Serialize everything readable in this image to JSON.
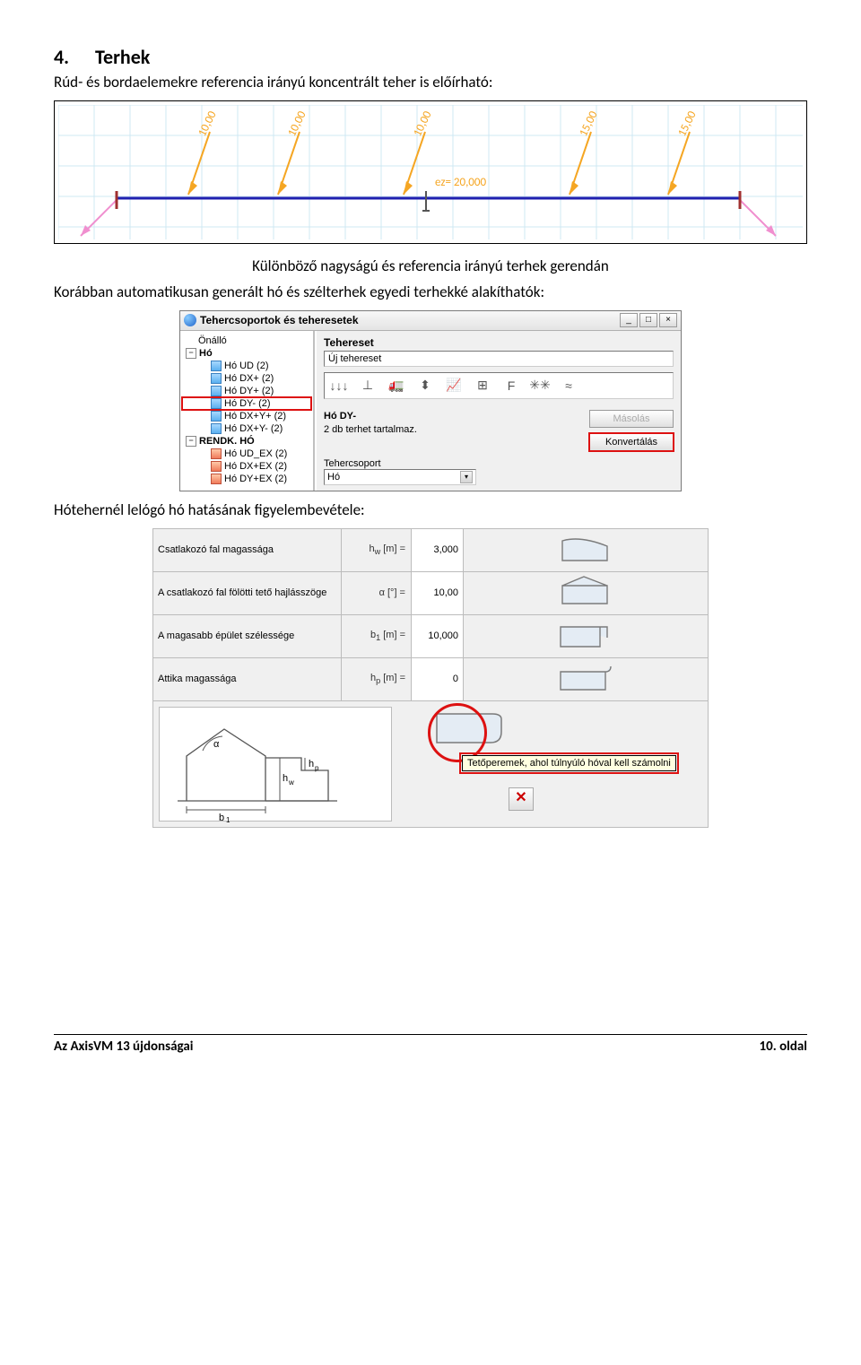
{
  "heading": {
    "num": "4.",
    "title": "Terhek"
  },
  "intro": "Rúd- és bordaelemekre referencia irányú koncentrált teher is előírható:",
  "beam": {
    "load_values": [
      "10,00",
      "10,00",
      "10,00",
      "15,00",
      "15,00"
    ],
    "ez_label": "ez= 20,000",
    "load_color": "#f5a623",
    "beam_color": "#2020b0",
    "support_color": "#a03030",
    "react_color": "#f08fcf",
    "grid_color": "#cfe8f3",
    "bg": "#ffffff"
  },
  "caption1": "Különböző nagyságú és referencia irányú terhek gerendán",
  "text2": "Korábban automatikusan generált hó és szélterhek egyedi terhekké alakíthatók:",
  "dlg1": {
    "title": "Tehercsoportok és teheresetek",
    "tree": [
      {
        "lvl": 2,
        "ico": "none",
        "label": "Önálló"
      },
      {
        "lvl": 1,
        "ico": "minus",
        "label": "Hó",
        "bold": true
      },
      {
        "lvl": 3,
        "ico": "load",
        "label": "Hó UD (2)"
      },
      {
        "lvl": 3,
        "ico": "load",
        "label": "Hó DX+ (2)"
      },
      {
        "lvl": 3,
        "ico": "load",
        "label": "Hó DY+ (2)"
      },
      {
        "lvl": 3,
        "ico": "load",
        "label": "Hó DY- (2)",
        "sel": true
      },
      {
        "lvl": 3,
        "ico": "load",
        "label": "Hó DX+Y+ (2)"
      },
      {
        "lvl": 3,
        "ico": "load",
        "label": "Hó DX+Y- (2)"
      },
      {
        "lvl": 1,
        "ico": "minus",
        "label": "RENDK. HÓ",
        "bold": true
      },
      {
        "lvl": 3,
        "ico": "redload",
        "label": "Hó UD_EX (2)"
      },
      {
        "lvl": 3,
        "ico": "redload",
        "label": "Hó DX+EX (2)"
      },
      {
        "lvl": 3,
        "ico": "redload",
        "label": "Hó DY+EX (2)"
      }
    ],
    "right": {
      "hdr": "Tehereset",
      "newcase": "Új tehereset",
      "tools": [
        "↓↓↓",
        "⊥",
        "🚛",
        "⬍",
        "📈",
        "⊞",
        "F",
        "✳✳",
        "≈"
      ],
      "case_name": "Hó DY-",
      "case_info": "2 db terhet tartalmaz.",
      "btn_copy": "Másolás",
      "btn_conv": "Konvertálás",
      "group_lbl": "Tehercsoport",
      "group_val": "Hó"
    }
  },
  "text3": "Hótehernél lelógó hó hatásának figyelembevétele:",
  "dlg2": {
    "rows": [
      {
        "lbl": "Csatlakozó fal magassága",
        "sym": "h_w [m] =",
        "val": "3,000",
        "sub": "w"
      },
      {
        "lbl": "A csatlakozó fal fölötti tető hajlásszöge",
        "sym": "α [°] =",
        "val": "10,00",
        "sub": ""
      },
      {
        "lbl": "A magasabb épület szélessége",
        "sym": "b_1 [m] =",
        "val": "10,000",
        "sub": "1"
      },
      {
        "lbl": "Attika magassága",
        "sym": "h_p [m] =",
        "val": "0",
        "sub": "p"
      }
    ],
    "tooltip": "Tetőperemek, ahol túlnyúló hóval kell számolni",
    "diagram": {
      "label_a": "α",
      "label_hw": "h_w",
      "label_hp": "h_p",
      "label_b1": "b_1"
    },
    "shape_color_border": "#7a7a7a",
    "shape_color_fill": "#e4ecf4"
  },
  "footer": {
    "left": "Az AxisVM 13 újdonságai",
    "right": "10. oldal"
  }
}
